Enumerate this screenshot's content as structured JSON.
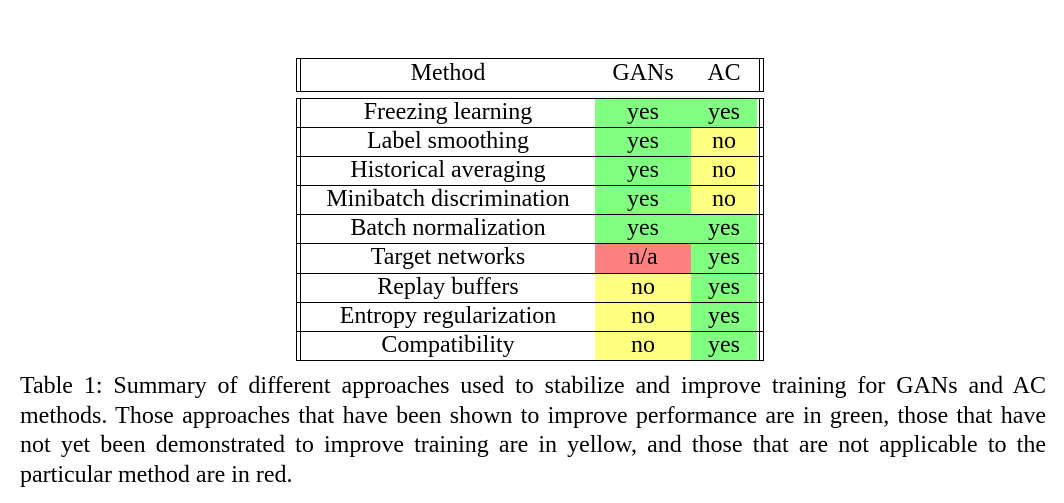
{
  "table": {
    "headers": {
      "method": "Method",
      "gans": "GANs",
      "ac": "AC"
    },
    "rows": [
      {
        "method": "Freezing learning",
        "gans": "yes",
        "ac": "yes"
      },
      {
        "method": "Label smoothing",
        "gans": "yes",
        "ac": "no"
      },
      {
        "method": "Historical averaging",
        "gans": "yes",
        "ac": "no"
      },
      {
        "method": "Minibatch discrimination",
        "gans": "yes",
        "ac": "no"
      },
      {
        "method": "Batch normalization",
        "gans": "yes",
        "ac": "yes"
      },
      {
        "method": "Target networks",
        "gans": "n/a",
        "ac": "yes"
      },
      {
        "method": "Replay buffers",
        "gans": "no",
        "ac": "yes"
      },
      {
        "method": "Entropy regularization",
        "gans": "no",
        "ac": "yes"
      },
      {
        "method": "Compatibility",
        "gans": "no",
        "ac": "yes"
      }
    ],
    "colors": {
      "yes": "#80ff80",
      "no": "#ffff80",
      "n/a": "#ff8080"
    }
  },
  "caption": "Table 1: Summary of different approaches used to stabilize and improve training for GANs and AC methods. Those approaches that have been shown to improve performance are in green, those that have not yet been demonstrated to improve training are in yellow, and those that are not applicable to the particular method are in red."
}
